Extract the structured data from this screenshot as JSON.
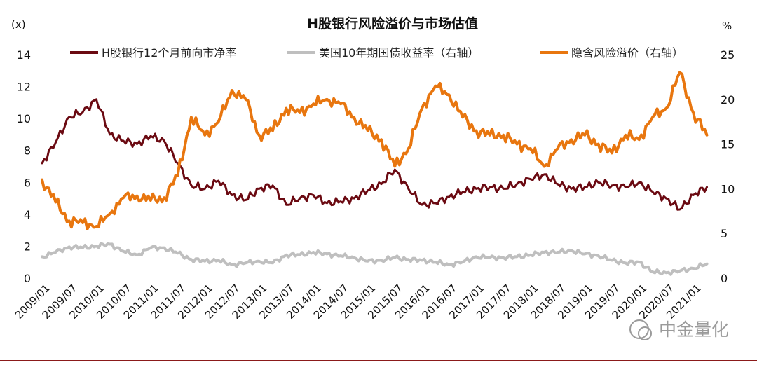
{
  "chart_data": {
    "type": "line",
    "title": "H股银行风险溢价与市场估值",
    "y_left_unit": "(x)",
    "y_right_unit": "%",
    "ylim_left": [
      0,
      14
    ],
    "ylim_right": [
      0,
      25
    ],
    "yticks_left": [
      "0",
      "2",
      "4",
      "6",
      "8",
      "10",
      "12",
      "14"
    ],
    "yticks_right": [
      "0",
      "5",
      "10",
      "15",
      "20",
      "25"
    ],
    "x_tick_labels": [
      "2009/01",
      "2009/07",
      "2010/01",
      "2010/07",
      "2011/01",
      "2011/07",
      "2012/01",
      "2012/07",
      "2013/01",
      "2013/07",
      "2014/01",
      "2014/07",
      "2015/01",
      "2015/07",
      "2016/01",
      "2016/07",
      "2017/01",
      "2017/07",
      "2018/01",
      "2018/07",
      "2019/01",
      "2019/07",
      "2020/01",
      "2020/07",
      "2021/01"
    ],
    "grid": false,
    "legend_position": "top",
    "series": [
      {
        "name": "H股银行12个月前向市净率",
        "axis": "left",
        "color": "#6b0a12",
        "x": [
          "2009/01",
          "2009/04",
          "2009/07",
          "2009/10",
          "2010/01",
          "2010/04",
          "2010/07",
          "2010/10",
          "2011/01",
          "2011/04",
          "2011/07",
          "2011/10",
          "2012/01",
          "2012/04",
          "2012/07",
          "2012/10",
          "2013/01",
          "2013/04",
          "2013/07",
          "2013/10",
          "2014/01",
          "2014/04",
          "2014/07",
          "2014/10",
          "2015/01",
          "2015/04",
          "2015/07",
          "2015/10",
          "2016/01",
          "2016/04",
          "2016/07",
          "2016/10",
          "2017/01",
          "2017/04",
          "2017/07",
          "2017/10",
          "2018/01",
          "2018/04",
          "2018/07",
          "2018/10",
          "2019/01",
          "2019/04",
          "2019/07",
          "2019/10",
          "2020/01",
          "2020/04",
          "2020/07",
          "2020/10",
          "2021/01",
          "2021/04"
        ],
        "values": [
          7.2,
          8.5,
          10.1,
          10.4,
          11.2,
          9.0,
          8.6,
          8.4,
          8.9,
          8.6,
          7.2,
          5.8,
          5.6,
          6.1,
          5.2,
          4.9,
          5.6,
          5.8,
          4.6,
          5.0,
          5.2,
          4.7,
          4.8,
          5.0,
          5.5,
          5.9,
          6.8,
          5.6,
          4.6,
          4.7,
          5.1,
          5.4,
          5.6,
          5.7,
          5.6,
          5.9,
          6.2,
          6.5,
          5.9,
          5.6,
          5.7,
          6.0,
          5.8,
          5.7,
          6.0,
          5.4,
          5.0,
          4.3,
          5.2,
          5.7
        ]
      },
      {
        "name": "美国10年期国债收益率（右轴）",
        "axis": "right",
        "color": "#bfbfbf",
        "x": [
          "2009/01",
          "2009/04",
          "2009/07",
          "2009/10",
          "2010/01",
          "2010/04",
          "2010/07",
          "2010/10",
          "2011/01",
          "2011/04",
          "2011/07",
          "2011/10",
          "2012/01",
          "2012/04",
          "2012/07",
          "2012/10",
          "2013/01",
          "2013/04",
          "2013/07",
          "2013/10",
          "2014/01",
          "2014/04",
          "2014/07",
          "2014/10",
          "2015/01",
          "2015/04",
          "2015/07",
          "2015/10",
          "2016/01",
          "2016/04",
          "2016/07",
          "2016/10",
          "2017/01",
          "2017/04",
          "2017/07",
          "2017/10",
          "2018/01",
          "2018/04",
          "2018/07",
          "2018/10",
          "2019/01",
          "2019/04",
          "2019/07",
          "2019/10",
          "2020/01",
          "2020/04",
          "2020/07",
          "2020/10",
          "2021/01",
          "2021/04"
        ],
        "values": [
          2.4,
          2.9,
          3.5,
          3.4,
          3.6,
          3.8,
          3.0,
          2.6,
          3.4,
          3.4,
          2.8,
          2.1,
          1.9,
          2.0,
          1.5,
          1.7,
          1.9,
          1.7,
          2.6,
          2.6,
          2.9,
          2.7,
          2.5,
          2.3,
          1.9,
          2.0,
          2.3,
          2.1,
          2.0,
          1.8,
          1.5,
          1.8,
          2.4,
          2.3,
          2.3,
          2.4,
          2.6,
          2.9,
          2.9,
          3.1,
          2.7,
          2.5,
          2.0,
          1.7,
          1.8,
          0.7,
          0.6,
          0.8,
          1.1,
          1.6
        ]
      },
      {
        "name": "隐含风险溢价（右轴）",
        "axis": "right",
        "color": "#e8760f",
        "x": [
          "2009/01",
          "2009/04",
          "2009/07",
          "2009/10",
          "2010/01",
          "2010/04",
          "2010/07",
          "2010/10",
          "2011/01",
          "2011/04",
          "2011/07",
          "2011/10",
          "2012/01",
          "2012/04",
          "2012/07",
          "2012/10",
          "2013/01",
          "2013/04",
          "2013/07",
          "2013/10",
          "2014/01",
          "2014/04",
          "2014/07",
          "2014/10",
          "2015/01",
          "2015/04",
          "2015/07",
          "2015/10",
          "2016/01",
          "2016/04",
          "2016/07",
          "2016/10",
          "2017/01",
          "2017/04",
          "2017/07",
          "2017/10",
          "2018/01",
          "2018/04",
          "2018/07",
          "2018/10",
          "2019/01",
          "2019/04",
          "2019/07",
          "2019/10",
          "2020/01",
          "2020/04",
          "2020/07",
          "2020/10",
          "2021/01",
          "2021/04"
        ],
        "values": [
          11.0,
          8.5,
          6.4,
          6.2,
          5.8,
          7.2,
          9.0,
          9.2,
          8.7,
          9.0,
          11.5,
          18.0,
          16.0,
          17.5,
          21.0,
          20.0,
          16.0,
          16.5,
          19.0,
          18.5,
          19.5,
          20.0,
          19.5,
          18.0,
          16.5,
          15.5,
          12.5,
          14.5,
          19.0,
          21.5,
          20.5,
          18.0,
          16.5,
          16.0,
          16.0,
          15.0,
          14.5,
          12.5,
          14.5,
          15.5,
          16.0,
          15.0,
          14.0,
          16.0,
          15.5,
          18.0,
          19.0,
          23.0,
          18.5,
          16.0
        ]
      }
    ]
  },
  "watermark": "中金量化"
}
